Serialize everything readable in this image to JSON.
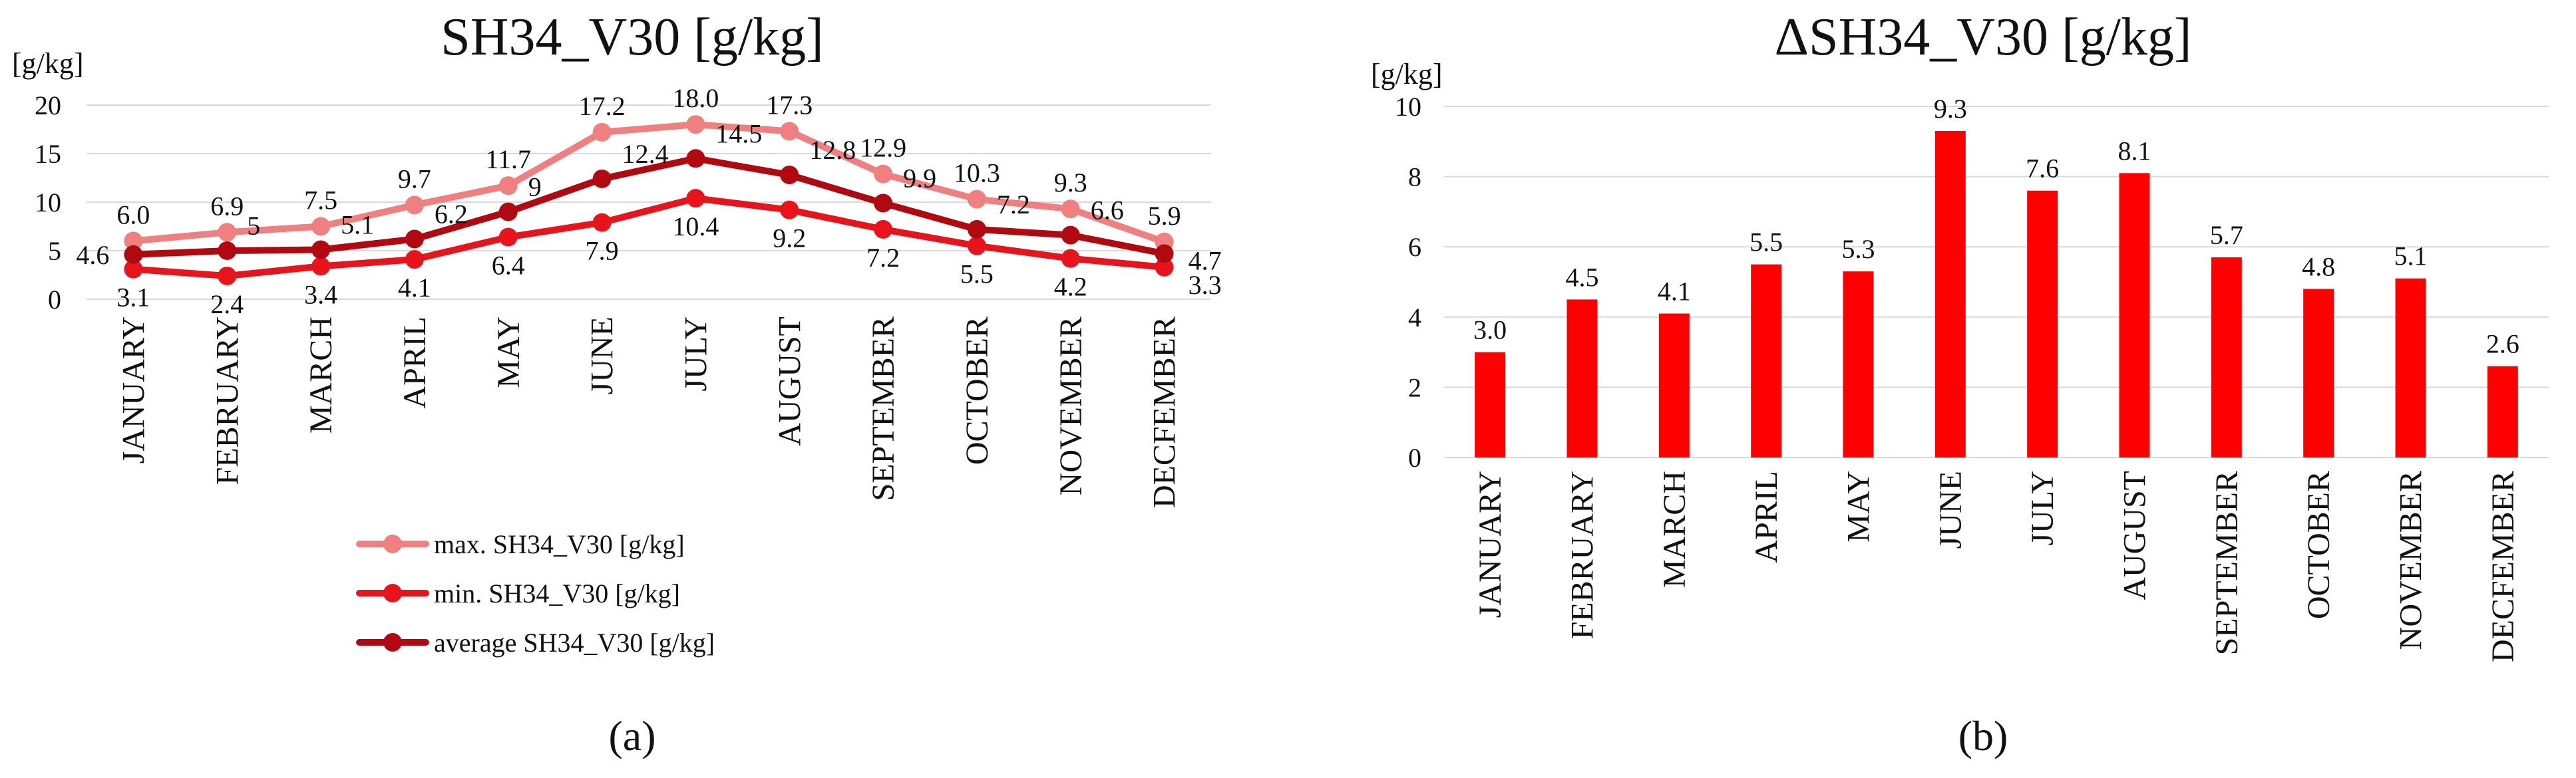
{
  "chart_data": [
    {
      "type": "line",
      "title": "SH34_V30 [g/kg]",
      "ylabel": "[g/kg]",
      "ylim": [
        0,
        20
      ],
      "yticks": [
        "0",
        "5",
        "10",
        "15",
        "20"
      ],
      "grid": true,
      "legend_position": "bottom",
      "categories": [
        "JANUARY",
        "FEBRUARY",
        "MARCH",
        "APRIL",
        "MAY",
        "JUNE",
        "JULY",
        "AUGUST",
        "SEPTEMBER",
        "OCTOBER",
        "NOVEMBER",
        "DECFEMBER"
      ],
      "series": [
        {
          "name": "max. SH34_V30 [g/kg]",
          "color": "#f08080",
          "values": [
            6.0,
            6.9,
            7.5,
            9.7,
            11.7,
            17.2,
            18.0,
            17.3,
            12.9,
            10.3,
            9.3,
            5.9
          ],
          "labels": [
            "6.0",
            "6.9",
            "7.5",
            "9.7",
            "11.7",
            "17.2",
            "18.0",
            "17.3",
            "12.9",
            "10.3",
            "9.3",
            "5.9"
          ]
        },
        {
          "name": "min. SH34_V30 [g/kg]",
          "color": "#e8141c",
          "values": [
            3.1,
            2.4,
            3.4,
            4.1,
            6.4,
            7.9,
            10.4,
            9.2,
            7.2,
            5.5,
            4.2,
            3.3
          ],
          "labels": [
            "3.1",
            "2.4",
            "3.4",
            "4.1",
            "6.4",
            "7.9",
            "10.4",
            "9.2",
            "7.2",
            "5.5",
            "4.2",
            "3.3"
          ]
        },
        {
          "name": "average SH34_V30 [g/kg]",
          "color": "#b00a10",
          "values": [
            4.6,
            5.0,
            5.1,
            6.2,
            9.0,
            12.4,
            14.5,
            12.8,
            9.9,
            7.2,
            6.6,
            4.7
          ],
          "labels": [
            "4.6",
            "5",
            "5.1",
            "6.2",
            "9",
            "12.4",
            "14.5",
            "12.8",
            "9.9",
            "7.2",
            "6.6",
            "4.7"
          ]
        }
      ],
      "panel_label": "(a)"
    },
    {
      "type": "bar",
      "title": "ΔSH34_V30 [g/kg]",
      "ylabel": "[g/kg]",
      "ylim": [
        0,
        10
      ],
      "yticks": [
        "0",
        "2",
        "4",
        "6",
        "8",
        "10"
      ],
      "grid": true,
      "color": "#ff0000",
      "categories": [
        "JANUARY",
        "FEBRUARY",
        "MARCH",
        "APRIL",
        "MAY",
        "JUNE",
        "JULY",
        "AUGUST",
        "SEPTEMBER",
        "OCTOBER",
        "NOVEMBER",
        "DECFEMBER"
      ],
      "values": [
        3.0,
        4.5,
        4.1,
        5.5,
        5.3,
        9.3,
        7.6,
        8.1,
        5.7,
        4.8,
        5.1,
        2.6
      ],
      "labels": [
        "3.0",
        "4.5",
        "4.1",
        "5.5",
        "5.3",
        "9.3",
        "7.6",
        "8.1",
        "5.7",
        "4.8",
        "5.1",
        "2.6"
      ],
      "panel_label": "(b)"
    }
  ]
}
